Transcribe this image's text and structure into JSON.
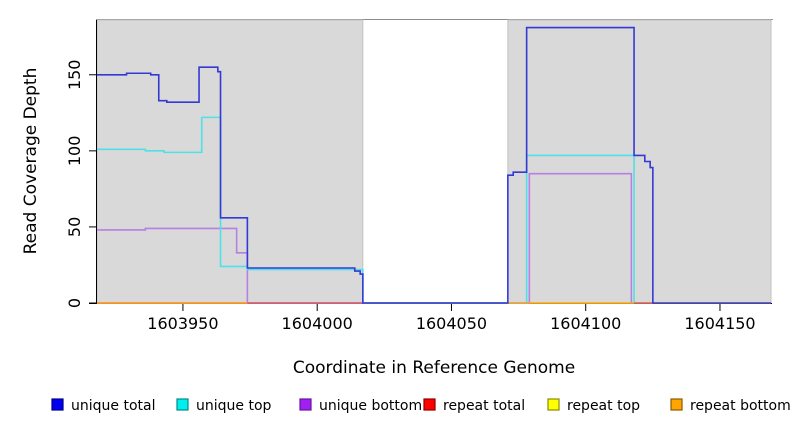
{
  "figure": {
    "xlabel": "Coordinate in Reference Genome",
    "ylabel": "Read Coverage Depth"
  },
  "chart_data": {
    "type": "line",
    "title": "",
    "xlabel": "Coordinate in Reference Genome",
    "ylabel": "Read Coverage Depth",
    "xlim": [
      1603918,
      1604169
    ],
    "ylim": [
      0,
      186
    ],
    "x_ticks": [
      1603950,
      1604000,
      1604050,
      1604100,
      1604150
    ],
    "y_ticks": [
      0,
      50,
      100,
      150
    ],
    "grid": false,
    "legend_position": "bottom",
    "shaded_regions": {
      "fill": "#d9d9d9",
      "border": "#c2c2c2",
      "ranges": [
        [
          1603918,
          1604017
        ],
        [
          1604071,
          1604169
        ]
      ]
    },
    "panel_top_line_color": "#8c8c8c",
    "axis_color": "#000000",
    "draw_order": [
      "repeat top",
      "unique bottom",
      "unique top",
      "repeat total",
      "repeat bottom",
      "unique total"
    ],
    "series": [
      {
        "label": "unique total",
        "line_color": "#3539d4",
        "legend_fill": "#0000ee",
        "legend_border": "#00008b",
        "paths": [
          [
            [
              1603918,
              150
            ],
            [
              1603929,
              151
            ],
            [
              1603938,
              150
            ],
            [
              1603941,
              133
            ],
            [
              1603944,
              132
            ],
            [
              1603956,
              155
            ],
            [
              1603963,
              152
            ],
            [
              1603964,
              56
            ],
            [
              1603974,
              23
            ],
            [
              1604014,
              21
            ],
            [
              1604016,
              19
            ],
            [
              1604017,
              0
            ],
            [
              1604071,
              84
            ],
            [
              1604073,
              86
            ],
            [
              1604078,
              181
            ],
            [
              1604118,
              97
            ],
            [
              1604122,
              93
            ],
            [
              1604124,
              89
            ],
            [
              1604125,
              0
            ],
            [
              1604169,
              0
            ]
          ]
        ]
      },
      {
        "label": "unique top",
        "line_color": "#4fe0e8",
        "legend_fill": "#00eeee",
        "legend_border": "#008b8b",
        "paths": [
          [
            [
              1603918,
              101
            ],
            [
              1603936,
              100
            ],
            [
              1603943,
              99
            ],
            [
              1603957,
              122
            ],
            [
              1603964,
              24
            ],
            [
              1603974,
              22
            ],
            [
              1604017,
              0
            ],
            [
              1604078,
              97
            ],
            [
              1604118,
              0
            ]
          ]
        ]
      },
      {
        "label": "unique bottom",
        "line_color": "#b77fe3",
        "legend_fill": "#a020f0",
        "legend_border": "#69149e",
        "paths": [
          [
            [
              1603918,
              48
            ],
            [
              1603936,
              49
            ],
            [
              1603970,
              33
            ],
            [
              1603974,
              0
            ],
            [
              1604079,
              85
            ],
            [
              1604117,
              0
            ]
          ]
        ]
      },
      {
        "label": "repeat total",
        "line_color": "#d75a78",
        "legend_fill": "#ff0000",
        "legend_border": "#8b0000",
        "paths": [
          [
            [
              1603918,
              0
            ],
            [
              1604017,
              0
            ]
          ],
          [
            [
              1604118,
              0
            ],
            [
              1604125,
              0
            ]
          ]
        ]
      },
      {
        "label": "repeat top",
        "line_color": "#f5f500",
        "legend_fill": "#ffff00",
        "legend_border": "#8b8b00",
        "paths": [
          [
            [
              1603918,
              0
            ],
            [
              1604169,
              0
            ]
          ]
        ]
      },
      {
        "label": "repeat bottom",
        "line_color": "#ffa32b",
        "legend_fill": "#ffa500",
        "legend_border": "#8b5a00",
        "paths": [
          [
            [
              1603918,
              0
            ],
            [
              1603974,
              0
            ]
          ],
          [
            [
              1604071,
              0
            ],
            [
              1604118,
              0
            ]
          ]
        ]
      }
    ]
  }
}
